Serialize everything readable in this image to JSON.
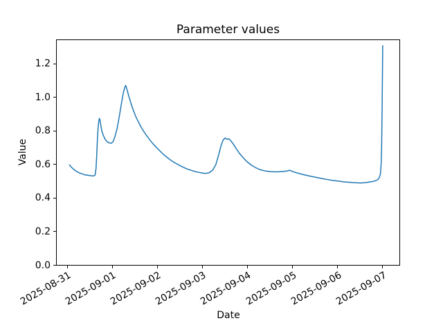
{
  "chart_data": {
    "type": "line",
    "title": "Parameter values",
    "xlabel": "Date",
    "ylabel": "Value",
    "x_unit": "days since 2025-08-31 00:00",
    "xlim_days": [
      -0.257,
      7.378
    ],
    "ylim": [
      0,
      1.345
    ],
    "grid": false,
    "legend": "none",
    "x_ticks": [
      {
        "day": 0,
        "label": "2025-08-31"
      },
      {
        "day": 1,
        "label": "2025-09-01"
      },
      {
        "day": 2,
        "label": "2025-09-02"
      },
      {
        "day": 3,
        "label": "2025-09-03"
      },
      {
        "day": 4,
        "label": "2025-09-04"
      },
      {
        "day": 5,
        "label": "2025-09-05"
      },
      {
        "day": 6,
        "label": "2025-09-06"
      },
      {
        "day": 7,
        "label": "2025-09-07"
      }
    ],
    "y_ticks": [
      {
        "value": 0.0,
        "label": "0.0"
      },
      {
        "value": 0.2,
        "label": "0.2"
      },
      {
        "value": 0.4,
        "label": "0.4"
      },
      {
        "value": 0.6,
        "label": "0.6"
      },
      {
        "value": 0.8,
        "label": "0.8"
      },
      {
        "value": 1.0,
        "label": "1.0"
      },
      {
        "value": 1.2,
        "label": "1.2"
      }
    ],
    "series": [
      {
        "name": "parameter-value",
        "color": "#1f77b4",
        "line_width": 1.5,
        "points": [
          [
            0.04,
            0.598
          ],
          [
            0.08,
            0.585
          ],
          [
            0.13,
            0.572
          ],
          [
            0.18,
            0.562
          ],
          [
            0.24,
            0.553
          ],
          [
            0.31,
            0.545
          ],
          [
            0.38,
            0.539
          ],
          [
            0.45,
            0.536
          ],
          [
            0.52,
            0.533
          ],
          [
            0.58,
            0.532
          ],
          [
            0.61,
            0.537
          ],
          [
            0.63,
            0.575
          ],
          [
            0.645,
            0.65
          ],
          [
            0.66,
            0.74
          ],
          [
            0.675,
            0.81
          ],
          [
            0.69,
            0.855
          ],
          [
            0.705,
            0.875
          ],
          [
            0.72,
            0.865
          ],
          [
            0.74,
            0.83
          ],
          [
            0.76,
            0.8
          ],
          [
            0.79,
            0.775
          ],
          [
            0.83,
            0.752
          ],
          [
            0.88,
            0.735
          ],
          [
            0.93,
            0.728
          ],
          [
            0.975,
            0.727
          ],
          [
            1.01,
            0.737
          ],
          [
            1.05,
            0.765
          ],
          [
            1.1,
            0.815
          ],
          [
            1.15,
            0.89
          ],
          [
            1.2,
            0.97
          ],
          [
            1.24,
            1.03
          ],
          [
            1.27,
            1.06
          ],
          [
            1.29,
            1.071
          ],
          [
            1.32,
            1.045
          ],
          [
            1.36,
            1.005
          ],
          [
            1.41,
            0.962
          ],
          [
            1.46,
            0.922
          ],
          [
            1.51,
            0.888
          ],
          [
            1.57,
            0.855
          ],
          [
            1.63,
            0.824
          ],
          [
            1.69,
            0.797
          ],
          [
            1.76,
            0.77
          ],
          [
            1.83,
            0.745
          ],
          [
            1.9,
            0.722
          ],
          [
            1.98,
            0.7
          ],
          [
            2.06,
            0.678
          ],
          [
            2.15,
            0.655
          ],
          [
            2.25,
            0.634
          ],
          [
            2.35,
            0.615
          ],
          [
            2.45,
            0.6
          ],
          [
            2.55,
            0.586
          ],
          [
            2.65,
            0.574
          ],
          [
            2.75,
            0.565
          ],
          [
            2.85,
            0.557
          ],
          [
            2.95,
            0.551
          ],
          [
            3.03,
            0.548
          ],
          [
            3.08,
            0.547
          ],
          [
            3.15,
            0.552
          ],
          [
            3.22,
            0.566
          ],
          [
            3.29,
            0.598
          ],
          [
            3.36,
            0.662
          ],
          [
            3.41,
            0.715
          ],
          [
            3.46,
            0.748
          ],
          [
            3.5,
            0.758
          ],
          [
            3.54,
            0.75
          ],
          [
            3.58,
            0.753
          ],
          [
            3.62,
            0.743
          ],
          [
            3.68,
            0.722
          ],
          [
            3.74,
            0.697
          ],
          [
            3.81,
            0.669
          ],
          [
            3.89,
            0.643
          ],
          [
            3.98,
            0.618
          ],
          [
            4.08,
            0.597
          ],
          [
            4.18,
            0.581
          ],
          [
            4.28,
            0.569
          ],
          [
            4.4,
            0.561
          ],
          [
            4.52,
            0.557
          ],
          [
            4.65,
            0.556
          ],
          [
            4.78,
            0.558
          ],
          [
            4.88,
            0.562
          ],
          [
            4.93,
            0.566
          ],
          [
            4.99,
            0.559
          ],
          [
            5.08,
            0.551
          ],
          [
            5.2,
            0.542
          ],
          [
            5.33,
            0.534
          ],
          [
            5.46,
            0.527
          ],
          [
            5.6,
            0.519
          ],
          [
            5.74,
            0.512
          ],
          [
            5.88,
            0.506
          ],
          [
            6.02,
            0.501
          ],
          [
            6.16,
            0.496
          ],
          [
            6.3,
            0.493
          ],
          [
            6.42,
            0.491
          ],
          [
            6.5,
            0.49
          ],
          [
            6.6,
            0.492
          ],
          [
            6.7,
            0.495
          ],
          [
            6.8,
            0.5
          ],
          [
            6.88,
            0.508
          ],
          [
            6.92,
            0.52
          ],
          [
            6.95,
            0.545
          ],
          [
            6.965,
            0.6
          ],
          [
            6.975,
            0.7
          ],
          [
            6.982,
            0.82
          ],
          [
            6.988,
            0.95
          ],
          [
            6.994,
            1.12
          ],
          [
            7.0,
            1.308
          ]
        ]
      }
    ]
  }
}
